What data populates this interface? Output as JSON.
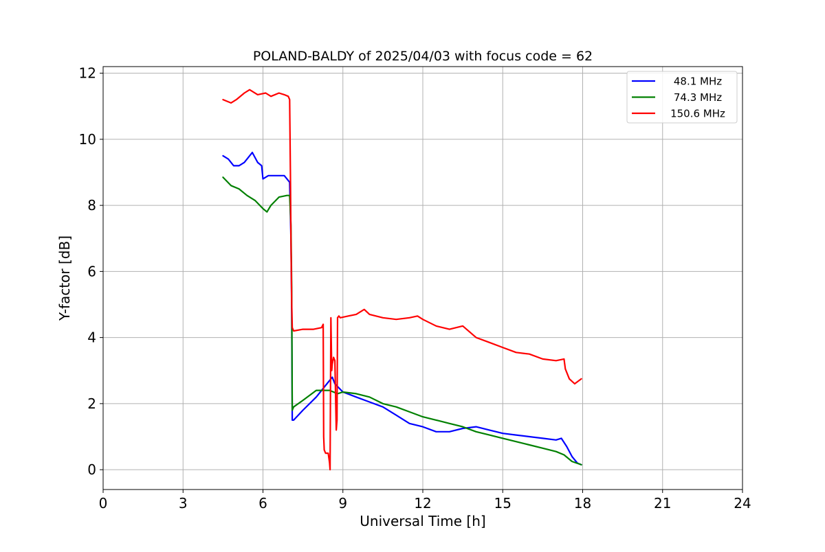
{
  "chart_data": {
    "type": "line",
    "title": "POLAND-BALDY of 2025/04/03 with focus code = 62",
    "xlabel": "Universal Time [h]",
    "ylabel": "Y-factor [dB]",
    "xlim": [
      0,
      24
    ],
    "ylim": [
      -0.6,
      12.2
    ],
    "xticks": [
      0,
      3,
      6,
      9,
      12,
      15,
      18,
      21,
      24
    ],
    "yticks": [
      0,
      2,
      4,
      6,
      8,
      10,
      12
    ],
    "xtick_labels": [
      "0",
      "3",
      "6",
      "9",
      "12",
      "15",
      "18",
      "21",
      "24"
    ],
    "ytick_labels": [
      "0",
      "2",
      "4",
      "6",
      "8",
      "10",
      "12"
    ],
    "grid": true,
    "legend_position": "top-right",
    "series": [
      {
        "name": "48.1 MHz",
        "color": "#0000ff",
        "x": [
          4.5,
          4.7,
          4.9,
          5.1,
          5.3,
          5.5,
          5.6,
          5.8,
          5.95,
          6.0,
          6.2,
          6.5,
          6.8,
          7.0,
          7.05,
          7.08,
          7.1,
          7.15,
          7.5,
          8.0,
          8.4,
          8.6,
          8.7,
          9.0,
          9.5,
          10.0,
          10.5,
          11.0,
          11.5,
          12.0,
          12.5,
          13.0,
          13.5,
          14.0,
          14.5,
          15.0,
          15.5,
          16.0,
          16.5,
          17.0,
          17.2,
          17.4,
          17.6,
          17.8,
          17.95
        ],
        "y": [
          9.5,
          9.4,
          9.2,
          9.2,
          9.3,
          9.5,
          9.6,
          9.3,
          9.2,
          8.8,
          8.9,
          8.9,
          8.9,
          8.7,
          7.0,
          4.8,
          1.5,
          1.5,
          1.8,
          2.2,
          2.6,
          2.8,
          2.6,
          2.35,
          2.2,
          2.05,
          1.9,
          1.65,
          1.4,
          1.3,
          1.15,
          1.15,
          1.25,
          1.3,
          1.2,
          1.1,
          1.05,
          1.0,
          0.95,
          0.9,
          0.95,
          0.7,
          0.4,
          0.2,
          0.15
        ]
      },
      {
        "name": "74.3 MHz",
        "color": "#008000",
        "x": [
          4.5,
          4.8,
          5.1,
          5.4,
          5.7,
          6.0,
          6.15,
          6.3,
          6.6,
          6.9,
          7.0,
          7.05,
          7.08,
          7.1,
          7.15,
          7.5,
          8.0,
          8.5,
          8.8,
          9.0,
          9.5,
          10.0,
          10.5,
          11.0,
          11.5,
          12.0,
          12.5,
          13.0,
          13.5,
          14.0,
          14.5,
          15.0,
          15.5,
          16.0,
          16.5,
          17.0,
          17.3,
          17.6,
          17.95
        ],
        "y": [
          8.85,
          8.6,
          8.5,
          8.3,
          8.15,
          7.9,
          7.8,
          8.0,
          8.25,
          8.3,
          8.3,
          7.4,
          5.5,
          1.8,
          1.9,
          2.1,
          2.4,
          2.4,
          2.3,
          2.35,
          2.3,
          2.2,
          2.0,
          1.9,
          1.75,
          1.6,
          1.5,
          1.4,
          1.3,
          1.15,
          1.05,
          0.95,
          0.85,
          0.75,
          0.65,
          0.55,
          0.45,
          0.25,
          0.15
        ]
      },
      {
        "name": "150.6 MHz",
        "color": "#ff0000",
        "x": [
          4.5,
          4.8,
          5.0,
          5.3,
          5.5,
          5.8,
          6.1,
          6.3,
          6.6,
          6.8,
          6.95,
          7.0,
          7.03,
          7.05,
          7.08,
          7.1,
          7.15,
          7.5,
          7.9,
          8.2,
          8.26,
          8.28,
          8.3,
          8.35,
          8.45,
          8.5,
          8.52,
          8.55,
          8.58,
          8.6,
          8.65,
          8.7,
          8.75,
          8.78,
          8.8,
          8.85,
          8.9,
          9.2,
          9.5,
          9.8,
          10.0,
          10.5,
          11.0,
          11.5,
          11.8,
          12.0,
          12.5,
          13.0,
          13.5,
          14.0,
          14.5,
          15.0,
          15.5,
          16.0,
          16.5,
          17.0,
          17.3,
          17.35,
          17.5,
          17.7,
          17.95
        ],
        "y": [
          11.2,
          11.1,
          11.2,
          11.4,
          11.5,
          11.35,
          11.4,
          11.3,
          11.4,
          11.35,
          11.3,
          11.2,
          9.0,
          7.0,
          5.0,
          4.3,
          4.2,
          4.25,
          4.25,
          4.3,
          4.4,
          1.0,
          0.6,
          0.5,
          0.5,
          0.2,
          0.0,
          4.6,
          3.0,
          3.2,
          3.4,
          3.3,
          1.2,
          1.5,
          4.6,
          4.65,
          4.6,
          4.65,
          4.7,
          4.85,
          4.7,
          4.6,
          4.55,
          4.6,
          4.65,
          4.55,
          4.35,
          4.25,
          4.35,
          4.0,
          3.85,
          3.7,
          3.55,
          3.5,
          3.35,
          3.3,
          3.35,
          3.05,
          2.75,
          2.6,
          2.75
        ]
      }
    ]
  }
}
